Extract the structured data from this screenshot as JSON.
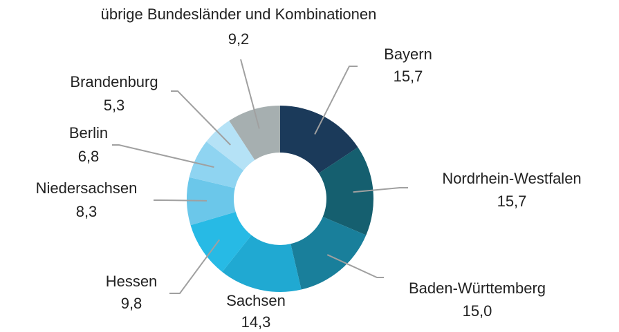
{
  "chart_data": {
    "type": "donut",
    "categories": [
      "Bayern",
      "Nordrhein-Westfalen",
      "Baden-Württemberg",
      "Sachsen",
      "Hessen",
      "Niedersachsen",
      "Berlin",
      "Brandenburg",
      "übrige Bundesländer und Kombinationen"
    ],
    "values": [
      15.7,
      15.7,
      15.0,
      14.3,
      9.8,
      8.3,
      6.8,
      5.3,
      9.2
    ],
    "value_labels": [
      "15,7",
      "15,7",
      "15,0",
      "14,3",
      "9,8",
      "8,3",
      "6,8",
      "5,3",
      "9,2"
    ],
    "colors": [
      "#1b3a5a",
      "#155f6f",
      "#197f9b",
      "#20a9d2",
      "#27bae5",
      "#6bc7ea",
      "#8fd4f1",
      "#b5e2f6",
      "#a6afb0"
    ]
  }
}
